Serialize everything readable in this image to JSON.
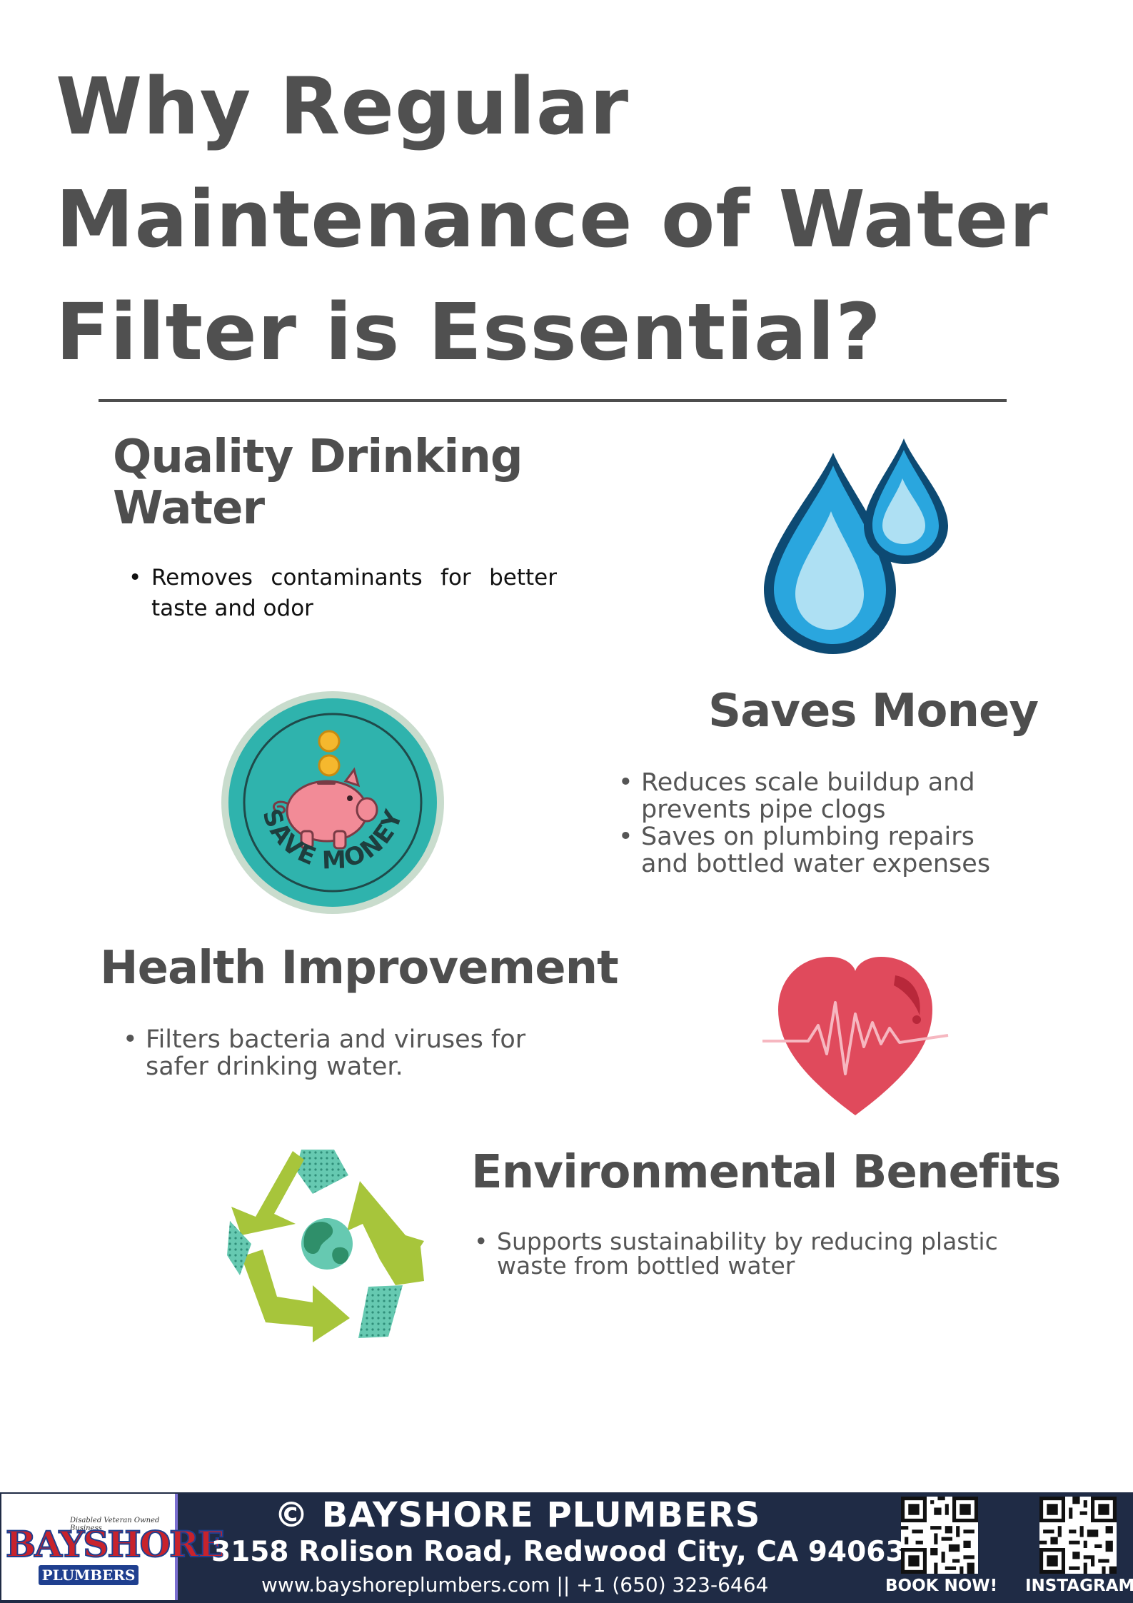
{
  "title": {
    "line1": "Why Regular",
    "line2": "Maintenance of Water",
    "line3": "Filter is Essential?"
  },
  "sections": [
    {
      "heading_line1": "Quality Drinking",
      "heading_line2": "Water",
      "bullets": [
        "Removes contaminants for better taste and odor"
      ],
      "icon": "water-drops-icon"
    },
    {
      "heading": "Saves Money",
      "bullets": [
        "Reduces scale buildup and prevents pipe clogs",
        "Saves on plumbing repairs and bottled water expenses"
      ],
      "icon": "piggy-bank-icon",
      "badge_text": "SAVE MONEY"
    },
    {
      "heading": "Health Improvement",
      "bullets": [
        "Filters bacteria and viruses for safer drinking water."
      ],
      "icon": "heart-pulse-icon"
    },
    {
      "heading": "Environmental Benefits",
      "bullets": [
        "Supports sustainability by reducing plastic waste from bottled water"
      ],
      "icon": "recycle-globe-icon"
    }
  ],
  "footer": {
    "logo_tagline": "Disabled Veteran Owned Business",
    "logo_main": "BAYSHORE",
    "logo_sub": "PLUMBERS",
    "brand": "© BAYSHORE PLUMBERS",
    "address": "3158 Rolison Road, Redwood City, CA 94063",
    "web_phone": "www.bayshoreplumbers.com || +1 (650) 323-6464",
    "qr1_label": "BOOK NOW!",
    "qr2_label": "INSTAGRAM"
  },
  "colors": {
    "title": "#505050",
    "footer_bg": "#1f2b45",
    "drop_dark": "#0d4a73",
    "drop_mid": "#2aa6de",
    "badge_teal": "#2fb3ad",
    "piggy_pink": "#f28b97",
    "heart_red": "#e04a5c",
    "recycle_green": "#a7c53b"
  }
}
